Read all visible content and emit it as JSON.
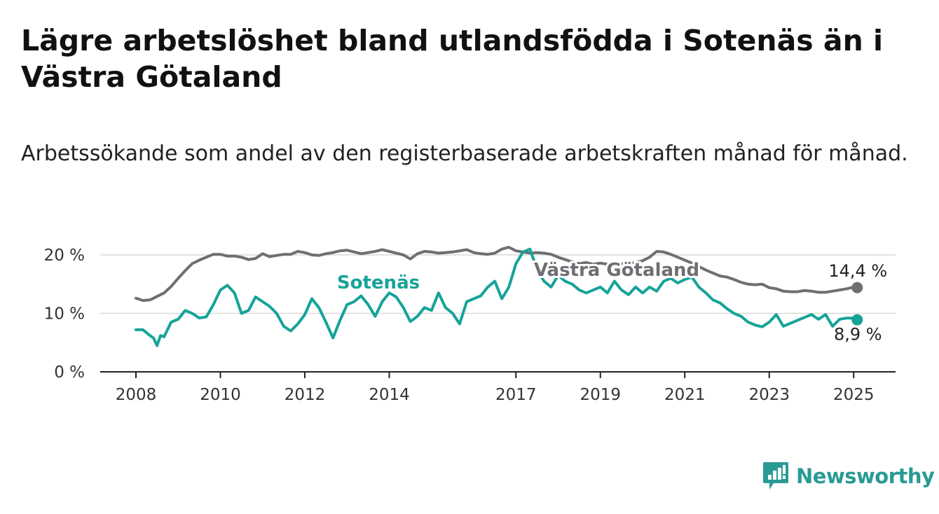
{
  "title": "Lägre arbetslöshet bland utlandsfödda i Sotenäs än i Västra Götaland",
  "subtitle": "Arbetssökande som andel av den registerbaserade arbetskraften månad för månad.",
  "logo": {
    "text": "Newsworthy",
    "icon": "newsworthy-logo-icon"
  },
  "colors": {
    "sotenas": "#16a399",
    "vastra_gotaland": "#6e6e73",
    "grid": "#d9d9d9",
    "axis": "#222222",
    "logo": "#2a9a94"
  },
  "chart_data": {
    "type": "line",
    "title": "Lägre arbetslöshet bland utlandsfödda i Sotenäs än i Västra Götaland",
    "xlabel": "",
    "ylabel": "",
    "ylim": [
      0,
      21
    ],
    "grid": true,
    "x_ticks": [
      "2008",
      "2010",
      "2012",
      "2014",
      "2017",
      "2019",
      "2021",
      "2023",
      "2025"
    ],
    "y_ticks": [
      "0 %",
      "10 %",
      "20 %"
    ],
    "end_labels": {
      "vastra_gotaland": "14,4 %",
      "sotenas": "8,9 %"
    },
    "series": [
      {
        "name": "Västra Götaland",
        "key": "vastra_gotaland",
        "points": [
          [
            "2008-01",
            12.6
          ],
          [
            "2008-03",
            12.2
          ],
          [
            "2008-05",
            12.3
          ],
          [
            "2008-07",
            12.9
          ],
          [
            "2008-09",
            13.5
          ],
          [
            "2008-11",
            14.6
          ],
          [
            "2009-01",
            16.0
          ],
          [
            "2009-03",
            17.3
          ],
          [
            "2009-05",
            18.5
          ],
          [
            "2009-07",
            19.1
          ],
          [
            "2009-09",
            19.6
          ],
          [
            "2009-11",
            20.1
          ],
          [
            "2010-01",
            20.1
          ],
          [
            "2010-03",
            19.8
          ],
          [
            "2010-05",
            19.8
          ],
          [
            "2010-07",
            19.6
          ],
          [
            "2010-09",
            19.2
          ],
          [
            "2010-11",
            19.4
          ],
          [
            "2011-01",
            20.2
          ],
          [
            "2011-03",
            19.7
          ],
          [
            "2011-05",
            19.9
          ],
          [
            "2011-07",
            20.1
          ],
          [
            "2011-09",
            20.1
          ],
          [
            "2011-11",
            20.6
          ],
          [
            "2012-01",
            20.4
          ],
          [
            "2012-03",
            20.0
          ],
          [
            "2012-05",
            19.9
          ],
          [
            "2012-07",
            20.2
          ],
          [
            "2012-09",
            20.4
          ],
          [
            "2012-11",
            20.7
          ],
          [
            "2013-01",
            20.8
          ],
          [
            "2013-03",
            20.5
          ],
          [
            "2013-05",
            20.2
          ],
          [
            "2013-07",
            20.4
          ],
          [
            "2013-09",
            20.6
          ],
          [
            "2013-11",
            20.9
          ],
          [
            "2014-01",
            20.6
          ],
          [
            "2014-03",
            20.3
          ],
          [
            "2014-05",
            20.0
          ],
          [
            "2014-07",
            19.3
          ],
          [
            "2014-09",
            20.2
          ],
          [
            "2014-11",
            20.6
          ],
          [
            "2015-01",
            20.5
          ],
          [
            "2015-03",
            20.3
          ],
          [
            "2015-05",
            20.4
          ],
          [
            "2015-07",
            20.5
          ],
          [
            "2015-09",
            20.7
          ],
          [
            "2015-11",
            20.9
          ],
          [
            "2016-01",
            20.4
          ],
          [
            "2016-03",
            20.2
          ],
          [
            "2016-05",
            20.1
          ],
          [
            "2016-07",
            20.3
          ],
          [
            "2016-09",
            21.0
          ],
          [
            "2016-11",
            21.3
          ],
          [
            "2017-01",
            20.7
          ],
          [
            "2017-03",
            20.5
          ],
          [
            "2017-05",
            20.3
          ],
          [
            "2017-07",
            20.4
          ],
          [
            "2017-09",
            20.3
          ],
          [
            "2017-11",
            20.1
          ],
          [
            "2018-01",
            19.6
          ],
          [
            "2018-03",
            19.2
          ],
          [
            "2018-05",
            18.8
          ],
          [
            "2018-07",
            18.5
          ],
          [
            "2018-09",
            18.7
          ],
          [
            "2018-11",
            18.4
          ],
          [
            "2019-01",
            18.6
          ],
          [
            "2019-03",
            18.4
          ],
          [
            "2019-05",
            18.3
          ],
          [
            "2019-07",
            18.5
          ],
          [
            "2019-09",
            18.6
          ],
          [
            "2019-11",
            18.7
          ],
          [
            "2020-01",
            19.0
          ],
          [
            "2020-03",
            19.6
          ],
          [
            "2020-05",
            20.6
          ],
          [
            "2020-07",
            20.5
          ],
          [
            "2020-09",
            20.1
          ],
          [
            "2020-11",
            19.6
          ],
          [
            "2021-01",
            19.1
          ],
          [
            "2021-03",
            18.6
          ],
          [
            "2021-05",
            18.0
          ],
          [
            "2021-07",
            17.4
          ],
          [
            "2021-09",
            16.9
          ],
          [
            "2021-11",
            16.4
          ],
          [
            "2022-01",
            16.2
          ],
          [
            "2022-03",
            15.8
          ],
          [
            "2022-05",
            15.3
          ],
          [
            "2022-07",
            15.0
          ],
          [
            "2022-09",
            14.9
          ],
          [
            "2022-11",
            15.0
          ],
          [
            "2023-01",
            14.4
          ],
          [
            "2023-03",
            14.2
          ],
          [
            "2023-05",
            13.8
          ],
          [
            "2023-07",
            13.7
          ],
          [
            "2023-09",
            13.7
          ],
          [
            "2023-11",
            13.9
          ],
          [
            "2024-01",
            13.8
          ],
          [
            "2024-03",
            13.6
          ],
          [
            "2024-05",
            13.6
          ],
          [
            "2024-07",
            13.8
          ],
          [
            "2024-09",
            14.0
          ],
          [
            "2024-11",
            14.2
          ],
          [
            "2025-01",
            14.5
          ],
          [
            "2025-02",
            14.4
          ]
        ]
      },
      {
        "name": "Sotenäs",
        "key": "sotenas",
        "points": [
          [
            "2008-01",
            7.2
          ],
          [
            "2008-03",
            7.2
          ],
          [
            "2008-05",
            6.2
          ],
          [
            "2008-06",
            5.8
          ],
          [
            "2008-07",
            4.5
          ],
          [
            "2008-08",
            6.2
          ],
          [
            "2008-09",
            6.0
          ],
          [
            "2008-11",
            8.5
          ],
          [
            "2009-01",
            9.0
          ],
          [
            "2009-03",
            10.5
          ],
          [
            "2009-05",
            10.0
          ],
          [
            "2009-07",
            9.2
          ],
          [
            "2009-09",
            9.4
          ],
          [
            "2009-11",
            11.5
          ],
          [
            "2010-01",
            14.0
          ],
          [
            "2010-03",
            14.8
          ],
          [
            "2010-05",
            13.5
          ],
          [
            "2010-07",
            10.0
          ],
          [
            "2010-09",
            10.5
          ],
          [
            "2010-11",
            12.8
          ],
          [
            "2011-01",
            12.0
          ],
          [
            "2011-03",
            11.2
          ],
          [
            "2011-05",
            10.0
          ],
          [
            "2011-07",
            7.8
          ],
          [
            "2011-09",
            7.0
          ],
          [
            "2011-11",
            8.2
          ],
          [
            "2012-01",
            9.8
          ],
          [
            "2012-03",
            12.5
          ],
          [
            "2012-05",
            11.0
          ],
          [
            "2012-07",
            8.5
          ],
          [
            "2012-09",
            5.8
          ],
          [
            "2012-11",
            8.8
          ],
          [
            "2013-01",
            11.5
          ],
          [
            "2013-03",
            12.0
          ],
          [
            "2013-05",
            13.0
          ],
          [
            "2013-07",
            11.5
          ],
          [
            "2013-09",
            9.5
          ],
          [
            "2013-11",
            12.0
          ],
          [
            "2014-01",
            13.5
          ],
          [
            "2014-03",
            12.8
          ],
          [
            "2014-05",
            11.0
          ],
          [
            "2014-07",
            8.6
          ],
          [
            "2014-09",
            9.5
          ],
          [
            "2014-11",
            11.0
          ],
          [
            "2015-01",
            10.5
          ],
          [
            "2015-03",
            13.5
          ],
          [
            "2015-05",
            11.0
          ],
          [
            "2015-07",
            10.0
          ],
          [
            "2015-09",
            8.2
          ],
          [
            "2015-11",
            12.0
          ],
          [
            "2016-01",
            12.5
          ],
          [
            "2016-03",
            13.0
          ],
          [
            "2016-05",
            14.5
          ],
          [
            "2016-07",
            15.5
          ],
          [
            "2016-09",
            12.5
          ],
          [
            "2016-11",
            14.5
          ],
          [
            "2017-01",
            18.5
          ],
          [
            "2017-03",
            20.5
          ],
          [
            "2017-05",
            21.0
          ],
          [
            "2017-07",
            17.5
          ],
          [
            "2017-09",
            15.5
          ],
          [
            "2017-11",
            14.5
          ],
          [
            "2018-01",
            16.5
          ],
          [
            "2018-03",
            15.5
          ],
          [
            "2018-05",
            15.0
          ],
          [
            "2018-07",
            14.0
          ],
          [
            "2018-09",
            13.5
          ],
          [
            "2018-11",
            14.0
          ],
          [
            "2019-01",
            14.5
          ],
          [
            "2019-03",
            13.5
          ],
          [
            "2019-05",
            15.5
          ],
          [
            "2019-07",
            14.0
          ],
          [
            "2019-09",
            13.2
          ],
          [
            "2019-11",
            14.5
          ],
          [
            "2020-01",
            13.5
          ],
          [
            "2020-03",
            14.5
          ],
          [
            "2020-05",
            13.8
          ],
          [
            "2020-07",
            15.5
          ],
          [
            "2020-09",
            16.0
          ],
          [
            "2020-11",
            15.2
          ],
          [
            "2021-01",
            15.8
          ],
          [
            "2021-03",
            16.2
          ],
          [
            "2021-05",
            14.5
          ],
          [
            "2021-07",
            13.5
          ],
          [
            "2021-09",
            12.3
          ],
          [
            "2021-11",
            11.8
          ],
          [
            "2022-01",
            10.8
          ],
          [
            "2022-03",
            10.0
          ],
          [
            "2022-05",
            9.5
          ],
          [
            "2022-07",
            8.5
          ],
          [
            "2022-09",
            8.0
          ],
          [
            "2022-11",
            7.7
          ],
          [
            "2023-01",
            8.5
          ],
          [
            "2023-03",
            9.8
          ],
          [
            "2023-05",
            7.8
          ],
          [
            "2023-07",
            8.3
          ],
          [
            "2023-09",
            8.8
          ],
          [
            "2023-11",
            9.3
          ],
          [
            "2024-01",
            9.8
          ],
          [
            "2024-03",
            9.0
          ],
          [
            "2024-05",
            9.8
          ],
          [
            "2024-07",
            7.8
          ],
          [
            "2024-09",
            9.0
          ],
          [
            "2024-11",
            9.2
          ],
          [
            "2025-01",
            9.2
          ],
          [
            "2025-02",
            8.9
          ]
        ]
      }
    ]
  }
}
